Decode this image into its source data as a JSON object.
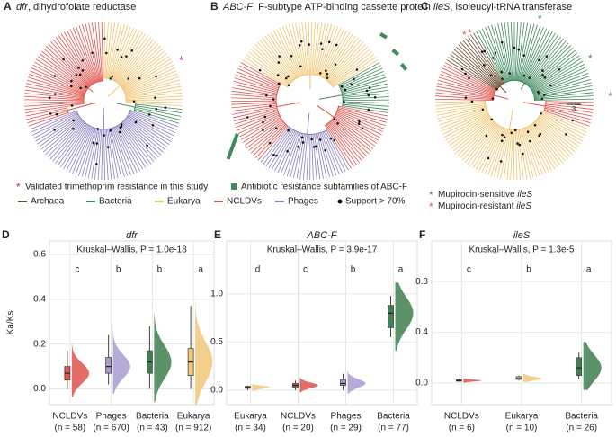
{
  "panels": [
    {
      "label": "A",
      "gene": "dfr",
      "desc": ", dihydrofolate reductase"
    },
    {
      "label": "B",
      "gene": "ABC-F",
      "desc": ", F-subtype ATP-binding cassette protein"
    },
    {
      "label": "C",
      "gene": "ileS",
      "desc": ", isoleucyl-tRNA transferase"
    }
  ],
  "legend_marks": [
    "Validated trimethoprim resistance in this study",
    "Antibiotic resistance subfamilies of ABC-F"
  ],
  "legend_taxa": [
    {
      "name": "Archaea",
      "color": "#6b4a2e"
    },
    {
      "name": "Bacteria",
      "color": "#3f8a5c"
    },
    {
      "name": "Eukarya",
      "color": "#f0c36b"
    },
    {
      "name": "NCLDVs",
      "color": "#e0524b"
    },
    {
      "name": "Phages",
      "color": "#8c7fc0"
    }
  ],
  "support": "Support > 70%",
  "legend_ileS": [
    {
      "pre": "Mupirocin-sensitive ",
      "gene": "ileS",
      "color": "#3f8a5c"
    },
    {
      "pre": "Mupirocin-resistant ",
      "gene": "ileS",
      "color": "#f05a3a"
    }
  ],
  "scale_label": "3",
  "chart_data": [
    {
      "type": "box",
      "label": "D",
      "title": "dfr",
      "ylabel": "Ka/Ks",
      "annotation": "Kruskal–Wallis, P = 1.0e-18",
      "categories": [
        "NCLDVs",
        "Phages",
        "Bacteria",
        "Eukarya"
      ],
      "count_labels": [
        "(n = 58)",
        "(n = 670)",
        "(n = 43)",
        "(n = 912)"
      ],
      "letters": [
        "c",
        "b",
        "b",
        "a"
      ],
      "colors": [
        "#e0524b",
        "#a99bd1",
        "#3f7f50",
        "#f0c878"
      ],
      "boxes": [
        {
          "low": 0,
          "q1": 0.04,
          "median": 0.07,
          "q3": 0.1,
          "high": 0.17
        },
        {
          "low": 0.02,
          "q1": 0.07,
          "median": 0.1,
          "q3": 0.14,
          "high": 0.24
        },
        {
          "low": 0,
          "q1": 0.07,
          "median": 0.12,
          "q3": 0.17,
          "high": 0.28
        },
        {
          "low": 0,
          "q1": 0.06,
          "median": 0.12,
          "q3": 0.18,
          "high": 0.37
        }
      ],
      "ylim": [
        -0.07,
        0.66
      ],
      "yticks": [
        {
          "value": 0,
          "label": "0.0"
        },
        0.2,
        0.4,
        0.6
      ],
      "grid": true
    },
    {
      "type": "box",
      "label": "E",
      "title": "ABC-F",
      "annotation": "Kruskal–Wallis, P = 3.9e-17",
      "categories": [
        "Eukarya",
        "NCLDVs",
        "Phages",
        "Bacteria"
      ],
      "count_labels": [
        "(n = 34)",
        "(n = 20)",
        "(n = 29)",
        "(n = 77)"
      ],
      "letters": [
        "d",
        "c",
        "b",
        "a"
      ],
      "colors": [
        "#f0c878",
        "#e0524b",
        "#a99bd1",
        "#3f7f50"
      ],
      "boxes": [
        {
          "low": 0,
          "q1": 0.02,
          "median": 0.03,
          "q3": 0.04,
          "high": 0.05
        },
        {
          "low": 0,
          "q1": 0.03,
          "median": 0.05,
          "q3": 0.07,
          "high": 0.1
        },
        {
          "low": 0,
          "q1": 0.05,
          "median": 0.07,
          "q3": 0.11,
          "high": 0.17
        },
        {
          "low": 0.55,
          "q1": 0.65,
          "median": 0.8,
          "q3": 0.88,
          "high": 0.98
        }
      ],
      "ylim": [
        -0.15,
        1.55
      ],
      "yticks": [
        {
          "value": 0,
          "label": "0.0"
        },
        0.5,
        {
          "value": 1,
          "label": "1.0"
        }
      ],
      "grid": true
    },
    {
      "type": "box",
      "label": "F",
      "title": "ileS",
      "annotation": "Kruskal–Wallis, P = 1.3e-5",
      "categories": [
        "NCLDVs",
        "Eukarya",
        "Bacteria"
      ],
      "count_labels": [
        "(n = 6)",
        "(n = 10)",
        "(n = 26)"
      ],
      "letters": [
        "c",
        "b",
        "a"
      ],
      "colors": [
        "#e0524b",
        "#f0c878",
        "#3f7f50"
      ],
      "boxes": [
        {
          "low": 0.01,
          "q1": 0.015,
          "median": 0.02,
          "q3": 0.025,
          "high": 0.03
        },
        {
          "low": 0.02,
          "q1": 0.03,
          "median": 0.035,
          "q3": 0.05,
          "high": 0.06
        },
        {
          "low": 0.03,
          "q1": 0.06,
          "median": 0.12,
          "q3": 0.2,
          "high": 0.24
        }
      ],
      "ylim": [
        -0.17,
        1.12
      ],
      "yticks": [
        {
          "value": 0,
          "label": "0.0"
        },
        0.4,
        0.8
      ],
      "grid": true
    }
  ]
}
